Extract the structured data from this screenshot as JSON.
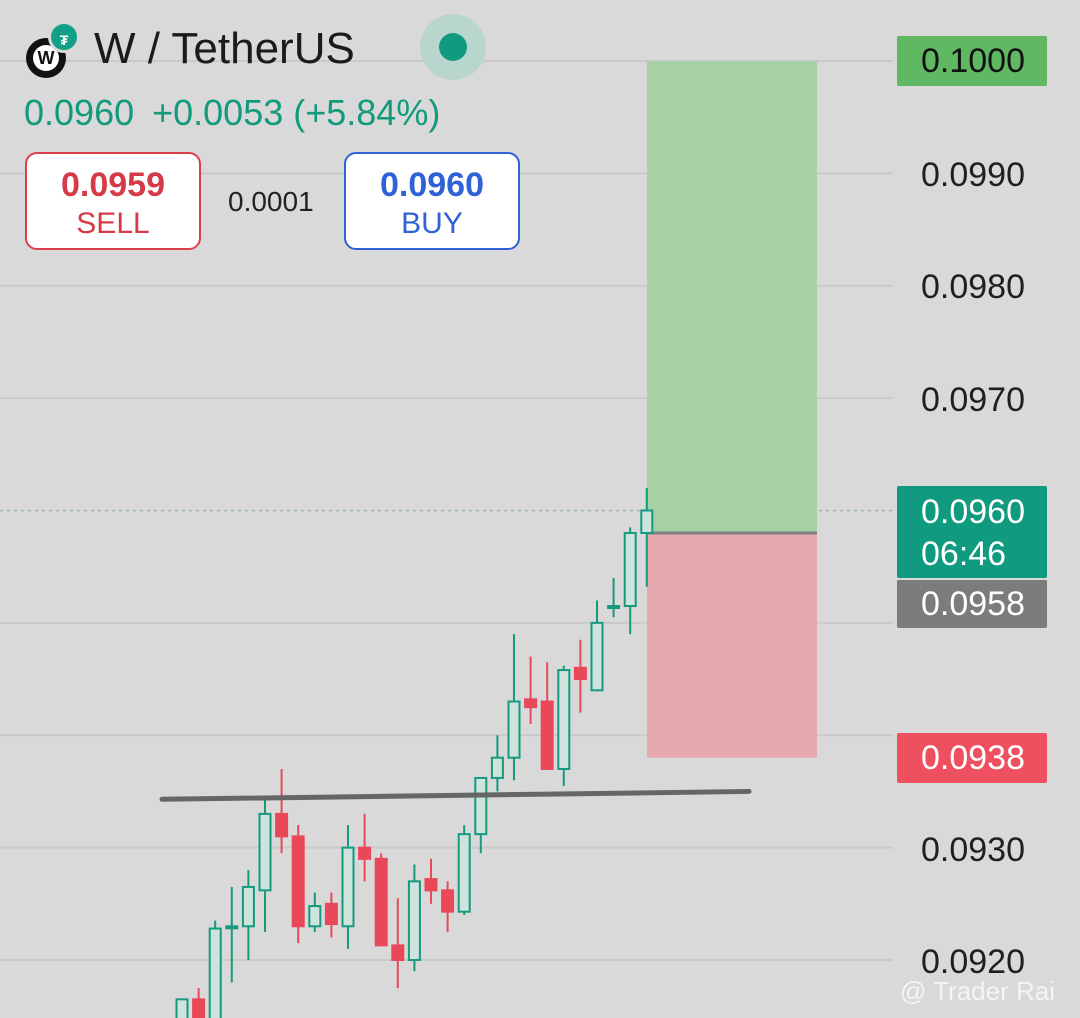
{
  "header": {
    "pair": "W / TetherUS",
    "logo_letter": "W",
    "quote_badge": "₮",
    "last_price": "0.0960",
    "change": "+0.0053",
    "change_pct": "(+5.84%)"
  },
  "trade": {
    "sell_price": "0.0959",
    "sell_label": "SELL",
    "spread": "0.0001",
    "buy_price": "0.0960",
    "buy_label": "BUY"
  },
  "price_axis": {
    "labels": [
      "0.0990",
      "0.0980",
      "0.0970",
      "0.0930",
      "0.0920"
    ]
  },
  "position": {
    "target": "0.1000",
    "current": "0.0960",
    "countdown": "06:46",
    "entry": "0.0958",
    "stop": "0.0938"
  },
  "watermark": "@ Trader Rai",
  "colors": {
    "up": "#159a80",
    "down": "#e84858",
    "profit_zone": "#a7d0a5",
    "loss_zone": "#e6a9ad",
    "grid": "#c9c9c9",
    "trendline": "#666666"
  },
  "chart_data": {
    "type": "candlestick",
    "y_range": [
      0.0915,
      0.1004
    ],
    "candles": [
      {
        "o": 0.09135,
        "h": 0.09165,
        "l": 0.0911,
        "c": 0.09165
      },
      {
        "o": 0.09165,
        "h": 0.09175,
        "l": 0.0912,
        "c": 0.0913
      },
      {
        "o": 0.0913,
        "h": 0.09235,
        "l": 0.09125,
        "c": 0.09228
      },
      {
        "o": 0.0923,
        "h": 0.09265,
        "l": 0.0918,
        "c": 0.0923
      },
      {
        "o": 0.0923,
        "h": 0.0928,
        "l": 0.092,
        "c": 0.09265
      },
      {
        "o": 0.09262,
        "h": 0.09342,
        "l": 0.09225,
        "c": 0.0933
      },
      {
        "o": 0.0933,
        "h": 0.0937,
        "l": 0.09295,
        "c": 0.0931
      },
      {
        "o": 0.0931,
        "h": 0.0932,
        "l": 0.09215,
        "c": 0.0923
      },
      {
        "o": 0.0923,
        "h": 0.0926,
        "l": 0.09225,
        "c": 0.09248
      },
      {
        "o": 0.0925,
        "h": 0.0926,
        "l": 0.0922,
        "c": 0.09232
      },
      {
        "o": 0.0923,
        "h": 0.0932,
        "l": 0.0921,
        "c": 0.093
      },
      {
        "o": 0.093,
        "h": 0.0933,
        "l": 0.0927,
        "c": 0.0929
      },
      {
        "o": 0.0929,
        "h": 0.09295,
        "l": 0.09215,
        "c": 0.09213
      },
      {
        "o": 0.09213,
        "h": 0.09255,
        "l": 0.09175,
        "c": 0.092
      },
      {
        "o": 0.092,
        "h": 0.09285,
        "l": 0.0919,
        "c": 0.0927
      },
      {
        "o": 0.09272,
        "h": 0.0929,
        "l": 0.0925,
        "c": 0.09262
      },
      {
        "o": 0.09262,
        "h": 0.0927,
        "l": 0.09225,
        "c": 0.09243
      },
      {
        "o": 0.09243,
        "h": 0.0932,
        "l": 0.0924,
        "c": 0.09312
      },
      {
        "o": 0.09312,
        "h": 0.09355,
        "l": 0.09295,
        "c": 0.09362
      },
      {
        "o": 0.09362,
        "h": 0.094,
        "l": 0.0935,
        "c": 0.0938
      },
      {
        "o": 0.0938,
        "h": 0.0949,
        "l": 0.0936,
        "c": 0.0943
      },
      {
        "o": 0.09432,
        "h": 0.0947,
        "l": 0.0941,
        "c": 0.09425
      },
      {
        "o": 0.0943,
        "h": 0.09465,
        "l": 0.0937,
        "c": 0.0937
      },
      {
        "o": 0.0937,
        "h": 0.09462,
        "l": 0.09355,
        "c": 0.09458
      },
      {
        "o": 0.0946,
        "h": 0.09485,
        "l": 0.0942,
        "c": 0.0945
      },
      {
        "o": 0.0944,
        "h": 0.0952,
        "l": 0.0944,
        "c": 0.095
      },
      {
        "o": 0.09515,
        "h": 0.0954,
        "l": 0.09505,
        "c": 0.09515
      },
      {
        "o": 0.09515,
        "h": 0.09585,
        "l": 0.0949,
        "c": 0.0958
      },
      {
        "o": 0.0958,
        "h": 0.0962,
        "l": 0.09532,
        "c": 0.096
      }
    ],
    "trendline": {
      "from": 0.09343,
      "to": 0.0935
    },
    "target_zone": [
      0.0958,
      0.1
    ],
    "stop_zone": [
      0.0938,
      0.0958
    ]
  }
}
